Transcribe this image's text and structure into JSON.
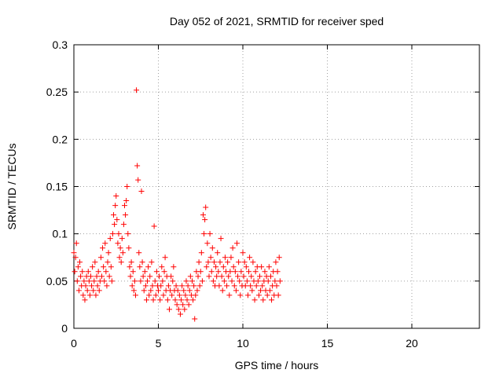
{
  "chart_data": {
    "type": "scatter",
    "title": "Day 052 of 2021, SRMTID for receiver sped",
    "xlabel": "GPS time / hours",
    "ylabel": "SRMTID / TECUs",
    "xlim": [
      0,
      24
    ],
    "ylim": [
      0,
      0.3
    ],
    "xticks": [
      0,
      5,
      10,
      15,
      20
    ],
    "yticks": [
      0,
      0.05,
      0.1,
      0.15,
      0.2,
      0.25,
      0.3
    ],
    "xtick_labels": [
      "0",
      "5",
      "10",
      "15",
      "20"
    ],
    "ytick_labels": [
      "0",
      "0.05",
      "0.1",
      "0.15",
      "0.2",
      "0.25",
      "0.3"
    ],
    "grid": true,
    "marker": "+",
    "series": [
      {
        "name": "SRMTID",
        "color": "#ff0000",
        "points": [
          [
            0.0,
            0.08
          ],
          [
            0.05,
            0.06
          ],
          [
            0.1,
            0.075
          ],
          [
            0.15,
            0.09
          ],
          [
            0.2,
            0.05
          ],
          [
            0.25,
            0.065
          ],
          [
            0.3,
            0.04
          ],
          [
            0.35,
            0.07
          ],
          [
            0.4,
            0.055
          ],
          [
            0.45,
            0.045
          ],
          [
            0.5,
            0.06
          ],
          [
            0.55,
            0.035
          ],
          [
            0.6,
            0.05
          ],
          [
            0.65,
            0.03
          ],
          [
            0.7,
            0.045
          ],
          [
            0.75,
            0.055
          ],
          [
            0.8,
            0.04
          ],
          [
            0.85,
            0.06
          ],
          [
            0.9,
            0.05
          ],
          [
            0.95,
            0.035
          ],
          [
            1.0,
            0.055
          ],
          [
            1.05,
            0.045
          ],
          [
            1.1,
            0.065
          ],
          [
            1.15,
            0.04
          ],
          [
            1.2,
            0.05
          ],
          [
            1.25,
            0.07
          ],
          [
            1.3,
            0.035
          ],
          [
            1.35,
            0.055
          ],
          [
            1.4,
            0.045
          ],
          [
            1.45,
            0.06
          ],
          [
            1.5,
            0.04
          ],
          [
            1.55,
            0.05
          ],
          [
            1.6,
            0.075
          ],
          [
            1.65,
            0.055
          ],
          [
            1.7,
            0.085
          ],
          [
            1.75,
            0.065
          ],
          [
            1.8,
            0.05
          ],
          [
            1.85,
            0.09
          ],
          [
            1.9,
            0.06
          ],
          [
            1.95,
            0.045
          ],
          [
            2.0,
            0.07
          ],
          [
            2.05,
            0.08
          ],
          [
            2.1,
            0.055
          ],
          [
            2.15,
            0.095
          ],
          [
            2.2,
            0.065
          ],
          [
            2.25,
            0.05
          ],
          [
            2.3,
            0.1
          ],
          [
            2.35,
            0.12
          ],
          [
            2.4,
            0.11
          ],
          [
            2.45,
            0.13
          ],
          [
            2.5,
            0.14
          ],
          [
            2.55,
            0.115
          ],
          [
            2.6,
            0.09
          ],
          [
            2.65,
            0.1
          ],
          [
            2.7,
            0.075
          ],
          [
            2.75,
            0.085
          ],
          [
            2.8,
            0.07
          ],
          [
            2.85,
            0.095
          ],
          [
            2.9,
            0.08
          ],
          [
            2.95,
            0.11
          ],
          [
            3.0,
            0.13
          ],
          [
            3.05,
            0.12
          ],
          [
            3.1,
            0.135
          ],
          [
            3.15,
            0.15
          ],
          [
            3.2,
            0.1
          ],
          [
            3.25,
            0.085
          ],
          [
            3.3,
            0.065
          ],
          [
            3.35,
            0.055
          ],
          [
            3.4,
            0.07
          ],
          [
            3.45,
            0.045
          ],
          [
            3.5,
            0.06
          ],
          [
            3.55,
            0.04
          ],
          [
            3.6,
            0.05
          ],
          [
            3.65,
            0.035
          ],
          [
            3.7,
            0.252
          ],
          [
            3.75,
            0.172
          ],
          [
            3.8,
            0.157
          ],
          [
            3.85,
            0.08
          ],
          [
            3.9,
            0.065
          ],
          [
            3.95,
            0.05
          ],
          [
            4.0,
            0.145
          ],
          [
            4.05,
            0.07
          ],
          [
            4.1,
            0.055
          ],
          [
            4.15,
            0.04
          ],
          [
            4.2,
            0.06
          ],
          [
            4.25,
            0.045
          ],
          [
            4.3,
            0.03
          ],
          [
            4.35,
            0.05
          ],
          [
            4.4,
            0.065
          ],
          [
            4.45,
            0.035
          ],
          [
            4.5,
            0.055
          ],
          [
            4.55,
            0.04
          ],
          [
            4.6,
            0.07
          ],
          [
            4.65,
            0.045
          ],
          [
            4.7,
            0.03
          ],
          [
            4.75,
            0.108
          ],
          [
            4.8,
            0.05
          ],
          [
            4.85,
            0.035
          ],
          [
            4.9,
            0.06
          ],
          [
            4.95,
            0.045
          ],
          [
            5.0,
            0.04
          ],
          [
            5.05,
            0.055
          ],
          [
            5.1,
            0.03
          ],
          [
            5.15,
            0.045
          ],
          [
            5.2,
            0.065
          ],
          [
            5.25,
            0.05
          ],
          [
            5.3,
            0.035
          ],
          [
            5.35,
            0.06
          ],
          [
            5.4,
            0.075
          ],
          [
            5.45,
            0.04
          ],
          [
            5.5,
            0.055
          ],
          [
            5.55,
            0.03
          ],
          [
            5.6,
            0.045
          ],
          [
            5.65,
            0.02
          ],
          [
            5.7,
            0.04
          ],
          [
            5.75,
            0.055
          ],
          [
            5.8,
            0.035
          ],
          [
            5.85,
            0.05
          ],
          [
            5.9,
            0.065
          ],
          [
            5.95,
            0.04
          ],
          [
            6.0,
            0.03
          ],
          [
            6.05,
            0.045
          ],
          [
            6.1,
            0.025
          ],
          [
            6.15,
            0.04
          ],
          [
            6.2,
            0.02
          ],
          [
            6.25,
            0.035
          ],
          [
            6.3,
            0.015
          ],
          [
            6.35,
            0.03
          ],
          [
            6.4,
            0.045
          ],
          [
            6.45,
            0.025
          ],
          [
            6.5,
            0.04
          ],
          [
            6.55,
            0.02
          ],
          [
            6.6,
            0.035
          ],
          [
            6.65,
            0.05
          ],
          [
            6.7,
            0.03
          ],
          [
            6.75,
            0.045
          ],
          [
            6.8,
            0.025
          ],
          [
            6.85,
            0.04
          ],
          [
            6.9,
            0.055
          ],
          [
            6.95,
            0.035
          ],
          [
            7.0,
            0.05
          ],
          [
            7.05,
            0.03
          ],
          [
            7.1,
            0.045
          ],
          [
            7.15,
            0.01
          ],
          [
            7.2,
            0.035
          ],
          [
            7.25,
            0.06
          ],
          [
            7.3,
            0.04
          ],
          [
            7.35,
            0.055
          ],
          [
            7.4,
            0.07
          ],
          [
            7.45,
            0.045
          ],
          [
            7.5,
            0.06
          ],
          [
            7.55,
            0.08
          ],
          [
            7.6,
            0.05
          ],
          [
            7.65,
            0.12
          ],
          [
            7.7,
            0.1
          ],
          [
            7.75,
            0.115
          ],
          [
            7.8,
            0.128
          ],
          [
            7.85,
            0.065
          ],
          [
            7.9,
            0.09
          ],
          [
            7.95,
            0.07
          ],
          [
            8.0,
            0.055
          ],
          [
            8.05,
            0.1
          ],
          [
            8.1,
            0.075
          ],
          [
            8.15,
            0.06
          ],
          [
            8.2,
            0.085
          ],
          [
            8.25,
            0.05
          ],
          [
            8.3,
            0.07
          ],
          [
            8.35,
            0.045
          ],
          [
            8.4,
            0.065
          ],
          [
            8.45,
            0.055
          ],
          [
            8.5,
            0.08
          ],
          [
            8.55,
            0.06
          ],
          [
            8.6,
            0.045
          ],
          [
            8.65,
            0.07
          ],
          [
            8.7,
            0.095
          ],
          [
            8.75,
            0.055
          ],
          [
            8.8,
            0.04
          ],
          [
            8.85,
            0.065
          ],
          [
            8.9,
            0.05
          ],
          [
            8.95,
            0.075
          ],
          [
            9.0,
            0.06
          ],
          [
            9.05,
            0.045
          ],
          [
            9.1,
            0.07
          ],
          [
            9.15,
            0.055
          ],
          [
            9.2,
            0.035
          ],
          [
            9.25,
            0.06
          ],
          [
            9.3,
            0.075
          ],
          [
            9.35,
            0.05
          ],
          [
            9.4,
            0.085
          ],
          [
            9.45,
            0.065
          ],
          [
            9.5,
            0.045
          ],
          [
            9.55,
            0.06
          ],
          [
            9.6,
            0.04
          ],
          [
            9.65,
            0.09
          ],
          [
            9.7,
            0.055
          ],
          [
            9.75,
            0.07
          ],
          [
            9.8,
            0.05
          ],
          [
            9.85,
            0.035
          ],
          [
            9.9,
            0.06
          ],
          [
            9.95,
            0.045
          ],
          [
            10.0,
            0.08
          ],
          [
            10.05,
            0.055
          ],
          [
            10.1,
            0.07
          ],
          [
            10.15,
            0.045
          ],
          [
            10.2,
            0.065
          ],
          [
            10.25,
            0.05
          ],
          [
            10.3,
            0.035
          ],
          [
            10.35,
            0.06
          ],
          [
            10.4,
            0.075
          ],
          [
            10.45,
            0.045
          ],
          [
            10.5,
            0.055
          ],
          [
            10.55,
            0.04
          ],
          [
            10.6,
            0.07
          ],
          [
            10.65,
            0.05
          ],
          [
            10.7,
            0.03
          ],
          [
            10.75,
            0.06
          ],
          [
            10.8,
            0.045
          ],
          [
            10.85,
            0.065
          ],
          [
            10.9,
            0.05
          ],
          [
            10.95,
            0.035
          ],
          [
            11.0,
            0.055
          ],
          [
            11.05,
            0.04
          ],
          [
            11.1,
            0.065
          ],
          [
            11.15,
            0.045
          ],
          [
            11.2,
            0.03
          ],
          [
            11.25,
            0.05
          ],
          [
            11.3,
            0.06
          ],
          [
            11.35,
            0.04
          ],
          [
            11.4,
            0.055
          ],
          [
            11.45,
            0.035
          ],
          [
            11.5,
            0.05
          ],
          [
            11.55,
            0.065
          ],
          [
            11.6,
            0.04
          ],
          [
            11.65,
            0.055
          ],
          [
            11.7,
            0.03
          ],
          [
            11.75,
            0.045
          ],
          [
            11.8,
            0.06
          ],
          [
            11.85,
            0.035
          ],
          [
            11.9,
            0.05
          ],
          [
            11.95,
            0.07
          ],
          [
            12.0,
            0.045
          ],
          [
            12.05,
            0.06
          ],
          [
            12.1,
            0.035
          ],
          [
            12.15,
            0.075
          ],
          [
            12.2,
            0.05
          ]
        ]
      }
    ]
  }
}
